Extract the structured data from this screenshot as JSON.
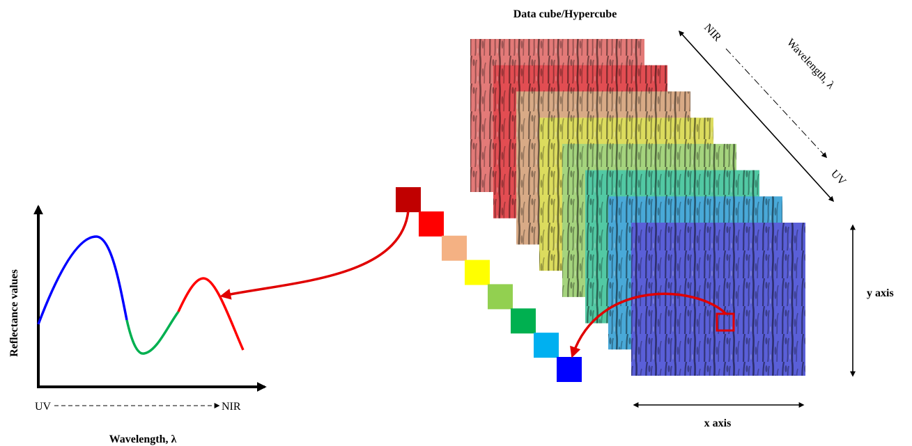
{
  "cube": {
    "title": "Data cube/Hypercube",
    "wavelength_label": "Wavelength, λ",
    "axis_end_top": "NIR",
    "axis_end_bottom": "UV",
    "y_axis_label": "y axis",
    "x_axis_label": "x axis",
    "layer_colors": [
      "#e37a78",
      "#e24d52",
      "#d8aa86",
      "#dcdc5e",
      "#a5d47e",
      "#52c9a4",
      "#49a9d8",
      "#5a5fd8"
    ]
  },
  "pixel_column": {
    "colors": [
      "#c00000",
      "#ff0000",
      "#f4b183",
      "#ffff00",
      "#92d050",
      "#00b050",
      "#00b0f0",
      "#0000ff"
    ]
  },
  "spectrum_plot": {
    "ylabel": "Reflectance values",
    "xlabel": "Wavelength, λ",
    "x_start": "UV",
    "x_end": "NIR",
    "segment_colors": {
      "uv": "#0000ff",
      "mid": "#00b050",
      "nir": "#ff0000"
    }
  },
  "arrows": {
    "color": "#e00000"
  }
}
